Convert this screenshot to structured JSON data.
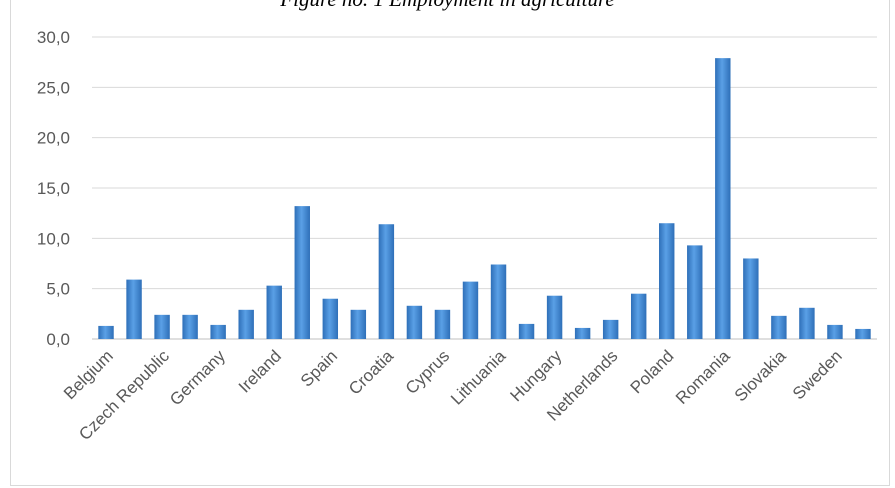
{
  "chart_data": {
    "type": "bar",
    "title": "Figure no. 1 Employment in agriculture",
    "xlabel": "",
    "ylabel": "",
    "ylim": [
      0,
      30
    ],
    "yticks": [
      "0,0",
      "5,0",
      "10,0",
      "15,0",
      "20,0",
      "25,0",
      "30,0"
    ],
    "grid": true,
    "legend": "none",
    "bar_color": "#4a90d9",
    "categories": [
      "Belgium",
      "",
      "Czech Republic",
      "",
      "Germany",
      "",
      "Ireland",
      "",
      "Spain",
      "",
      "Croatia",
      "",
      "Cyprus",
      "",
      "Lithuania",
      "",
      "Hungary",
      "",
      "Netherlands",
      "",
      "Poland",
      "",
      "Romania",
      "",
      "Slovakia",
      "",
      "Sweden",
      ""
    ],
    "values": [
      1.3,
      5.9,
      2.4,
      2.4,
      1.4,
      2.9,
      5.3,
      13.2,
      4.0,
      2.9,
      11.4,
      3.3,
      2.9,
      5.7,
      7.4,
      1.5,
      4.3,
      1.1,
      1.9,
      4.5,
      11.5,
      9.3,
      27.9,
      8.0,
      2.3,
      3.1,
      1.4,
      1.0
    ]
  }
}
